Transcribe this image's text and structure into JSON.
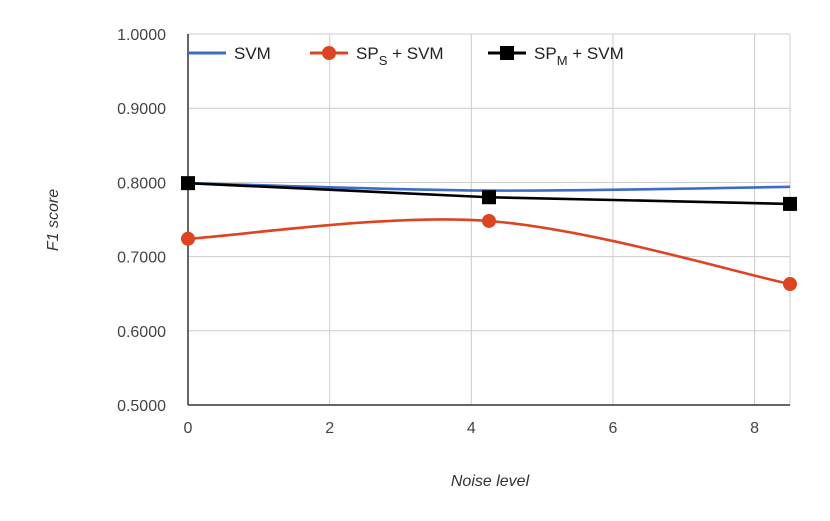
{
  "chart_data": {
    "type": "line",
    "title": "",
    "xlabel": "Noise level",
    "ylabel": "F1 score",
    "xlim": [
      0,
      8.5
    ],
    "ylim": [
      0.5,
      1.0
    ],
    "x_ticks": [
      0,
      2,
      4,
      6,
      8
    ],
    "y_ticks": [
      "0.5000",
      "0.6000",
      "0.7000",
      "0.8000",
      "0.9000",
      "1.0000"
    ],
    "grid": true,
    "legend_position": "top",
    "series": [
      {
        "name": "SVM",
        "legend_main": "SVM",
        "legend_sub": "",
        "legend_tail": "",
        "color": "#3d6cc6",
        "marker": "none",
        "smooth": true,
        "x": [
          0,
          4.25,
          8.5
        ],
        "y": [
          0.799,
          0.789,
          0.794
        ]
      },
      {
        "name": "SPS + SVM",
        "legend_main": "SP",
        "legend_sub": "S",
        "legend_tail": " + SVM",
        "color": "#dd4422",
        "marker": "circle",
        "smooth": true,
        "x": [
          0,
          4.25,
          8.5
        ],
        "y": [
          0.724,
          0.748,
          0.663
        ]
      },
      {
        "name": "SPM + SVM",
        "legend_main": "SP",
        "legend_sub": "M",
        "legend_tail": " + SVM",
        "color": "#000000",
        "marker": "square",
        "smooth": false,
        "x": [
          0,
          4.25,
          8.5
        ],
        "y": [
          0.799,
          0.78,
          0.771
        ]
      }
    ]
  }
}
